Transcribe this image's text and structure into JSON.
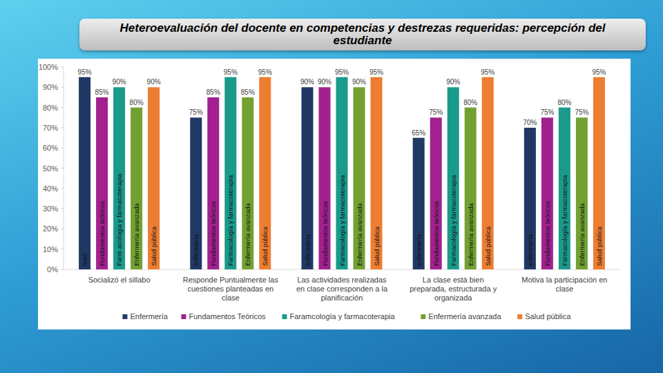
{
  "chart_data": {
    "type": "bar",
    "title": "Heteroevaluación del docente en competencias y destrezas requeridas: percepción del estudiante",
    "categories": [
      "Socializó el sillabo",
      "Responde Puntualmente las cuestiones planteadas en clase",
      "Las actividades realizadas en clase corresponden a la planificación",
      "La clase está bien preparada, estructurada y organizada",
      "Motiva la participación en clase"
    ],
    "series": [
      {
        "name": "Enfermería",
        "color": "#203864",
        "values": [
          95,
          75,
          90,
          65,
          70
        ],
        "value_labels": [
          "95%",
          "75%",
          "90%",
          "65%",
          "70%"
        ],
        "bar_texts": [
          "merí",
          "enfermería",
          "enfermería",
          "enfermería",
          "enfermería"
        ]
      },
      {
        "name": "Fundamentos Teóricos",
        "color": "#a2208f",
        "values": [
          85,
          85,
          90,
          75,
          75
        ],
        "value_labels": [
          "85%",
          "85%",
          "90%",
          "75%",
          "75%"
        ],
        "bar_texts": [
          "Fundamentos teóricos",
          "Fundamentos teóricos",
          "Fundamentos teóricos",
          "Fundamentos teóricos",
          "Fundamentos teóricos"
        ]
      },
      {
        "name": "Faramcología y farmacoterapia",
        "color": "#1a9a8b",
        "values": [
          90,
          95,
          95,
          90,
          80
        ],
        "value_labels": [
          "90%",
          "95%",
          "95%",
          "90%",
          "80%"
        ],
        "bar_texts": [
          "Farm acologia y farmacoterapia",
          "Farmacología y farmacoterapia",
          "Farmacología y farmacoterapia",
          "Farmacología y farmacoterapia",
          "Farmacología y farmacoterapia"
        ]
      },
      {
        "name": "Enfermería avanzada",
        "color": "#72a132",
        "values": [
          80,
          85,
          90,
          80,
          75
        ],
        "value_labels": [
          "80%",
          "85%",
          "90%",
          "80%",
          "75%"
        ],
        "bar_texts": [
          "Enfermería avanzada",
          "Enfermería avanzada",
          "Enfermería avanzada",
          "Enfermería avanzada",
          "Enfermería avanzada"
        ]
      },
      {
        "name": "Salud pública",
        "color": "#ed7d31",
        "values": [
          90,
          95,
          95,
          95,
          95
        ],
        "value_labels": [
          "90%",
          "95%",
          "95%",
          "95%",
          "95%"
        ],
        "bar_texts": [
          "Salud pública",
          "Salud pública",
          "Salud pública",
          "Salud pública",
          "Salud pública"
        ]
      }
    ],
    "ylim": [
      0,
      100
    ],
    "yticks": [
      {
        "value": 0,
        "label": "0%"
      },
      {
        "value": 10,
        "label": "10%"
      },
      {
        "value": 20,
        "label": "20%"
      },
      {
        "value": 30,
        "label": "30%"
      },
      {
        "value": 40,
        "label": "40%"
      },
      {
        "value": 50,
        "label": "50%"
      },
      {
        "value": 60,
        "label": "60%"
      },
      {
        "value": 70,
        "label": "70%"
      },
      {
        "value": 80,
        "label": "80%"
      },
      {
        "value": 90,
        "label": "90%"
      },
      {
        "value": 100,
        "label": "100%"
      }
    ],
    "grid": false,
    "legend": "bottom",
    "data_labels": true
  }
}
